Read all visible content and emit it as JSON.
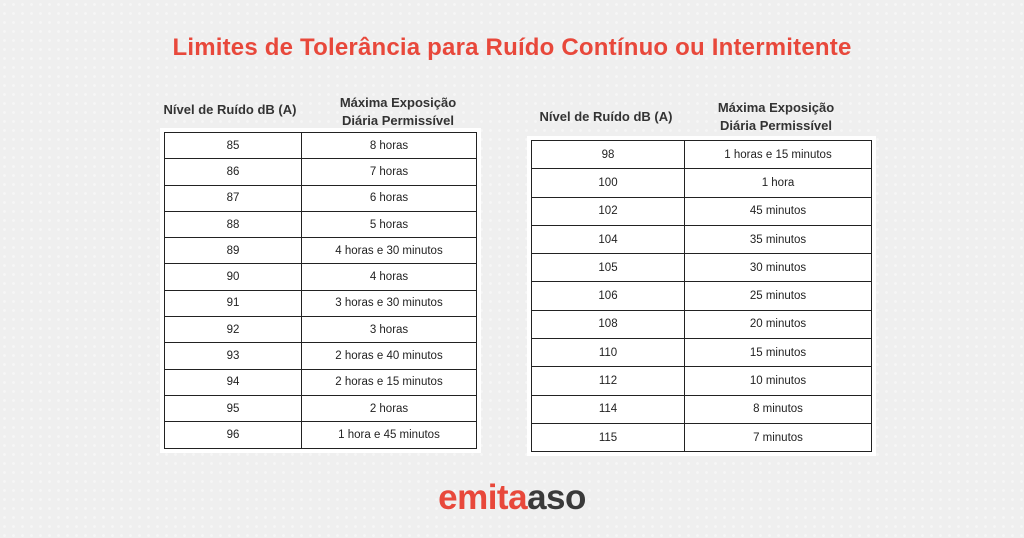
{
  "title": "Limites de Tolerância para Ruído Contínuo ou Intermitente",
  "left_table": {
    "header_col1": "Nível de Ruído dB (A)",
    "header_col2_line1": "Máxima Exposição",
    "header_col2_line2": "Diária Permissível",
    "rows": [
      {
        "level": "85",
        "time": "8 horas"
      },
      {
        "level": "86",
        "time": "7 horas"
      },
      {
        "level": "87",
        "time": "6 horas"
      },
      {
        "level": "88",
        "time": "5 horas"
      },
      {
        "level": "89",
        "time": "4 horas e 30 minutos"
      },
      {
        "level": "90",
        "time": "4 horas"
      },
      {
        "level": "91",
        "time": "3 horas e 30 minutos"
      },
      {
        "level": "92",
        "time": "3 horas"
      },
      {
        "level": "93",
        "time": "2 horas e 40 minutos"
      },
      {
        "level": "94",
        "time": "2 horas e 15 minutos"
      },
      {
        "level": "95",
        "time": "2 horas"
      },
      {
        "level": "96",
        "time": "1 hora e 45 minutos"
      }
    ]
  },
  "right_table": {
    "header_col1": "Nível de Ruído dB (A)",
    "header_col2_line1": "Máxima Exposição",
    "header_col2_line2": "Diária Permissível",
    "rows": [
      {
        "level": "98",
        "time": "1 horas e 15 minutos"
      },
      {
        "level": "100",
        "time": "1 hora"
      },
      {
        "level": "102",
        "time": "45 minutos"
      },
      {
        "level": "104",
        "time": "35 minutos"
      },
      {
        "level": "105",
        "time": "30 minutos"
      },
      {
        "level": "106",
        "time": "25 minutos"
      },
      {
        "level": "108",
        "time": "20 minutos"
      },
      {
        "level": "110",
        "time": "15 minutos"
      },
      {
        "level": "112",
        "time": "10 minutos"
      },
      {
        "level": "114",
        "time": "8 minutos"
      },
      {
        "level": "115",
        "time": "7 minutos"
      }
    ]
  },
  "logo": {
    "part1": "emita",
    "part2": "aso"
  },
  "colors": {
    "accent": "#e8483b",
    "logo_dark": "#3a3a3a",
    "background": "#efefef"
  }
}
